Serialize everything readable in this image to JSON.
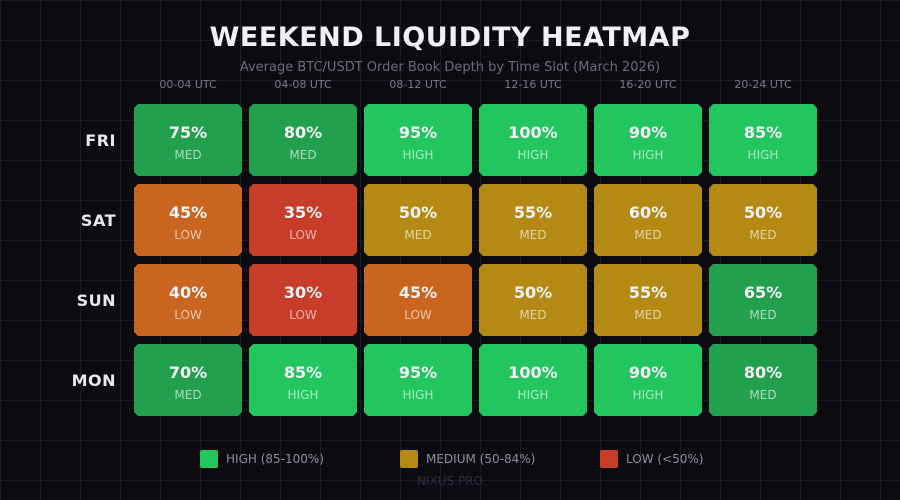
{
  "chart_data": {
    "type": "heatmap",
    "title": "WEEKEND LIQUIDITY HEATMAP",
    "subtitle": "Average BTC/USDT Order Book Depth by Time Slot (March 2026)",
    "xlabel": "",
    "ylabel": "",
    "columns": [
      "00-04 UTC",
      "04-08 UTC",
      "08-12 UTC",
      "12-16 UTC",
      "16-20 UTC",
      "20-24 UTC"
    ],
    "rows": [
      "FRI",
      "SAT",
      "SUN",
      "MON"
    ],
    "values": [
      [
        75,
        80,
        95,
        100,
        90,
        85
      ],
      [
        45,
        35,
        50,
        55,
        60,
        50
      ],
      [
        40,
        30,
        45,
        50,
        55,
        65
      ],
      [
        70,
        85,
        95,
        100,
        90,
        80
      ]
    ],
    "levels": [
      [
        "MED",
        "MED",
        "HIGH",
        "HIGH",
        "HIGH",
        "HIGH"
      ],
      [
        "LOW",
        "LOW",
        "MED",
        "MED",
        "MED",
        "MED"
      ],
      [
        "LOW",
        "LOW",
        "LOW",
        "MED",
        "MED",
        "MED"
      ],
      [
        "MED",
        "HIGH",
        "HIGH",
        "HIGH",
        "HIGH",
        "MED"
      ]
    ],
    "legend": [
      {
        "label": "HIGH (85-100%)",
        "color": "#22c55e"
      },
      {
        "label": "MEDIUM (50-84%)",
        "color": "#b58a14"
      },
      {
        "label": "LOW (<50%)",
        "color": "#c83c2a"
      }
    ],
    "legend_position": "bottom",
    "grid": true
  },
  "header": {
    "title": "WEEKEND LIQUIDITY HEATMAP",
    "subtitle": "Average BTC/USDT Order Book Depth by Time Slot (March 2026)"
  },
  "columns": [
    {
      "label": "00-04 UTC"
    },
    {
      "label": "04-08 UTC"
    },
    {
      "label": "08-12 UTC"
    },
    {
      "label": "12-16 UTC"
    },
    {
      "label": "16-20 UTC"
    },
    {
      "label": "20-24 UTC"
    }
  ],
  "rows": [
    {
      "label": "FRI",
      "cells": [
        {
          "pct": "75%",
          "level": "MED",
          "color": "#23a04e"
        },
        {
          "pct": "80%",
          "level": "MED",
          "color": "#23a04e"
        },
        {
          "pct": "95%",
          "level": "HIGH",
          "color": "#22c55e"
        },
        {
          "pct": "100%",
          "level": "HIGH",
          "color": "#22c55e"
        },
        {
          "pct": "90%",
          "level": "HIGH",
          "color": "#22c55e"
        },
        {
          "pct": "85%",
          "level": "HIGH",
          "color": "#22c55e"
        }
      ]
    },
    {
      "label": "SAT",
      "cells": [
        {
          "pct": "45%",
          "level": "LOW",
          "color": "#c9651f"
        },
        {
          "pct": "35%",
          "level": "LOW",
          "color": "#c83c2a"
        },
        {
          "pct": "50%",
          "level": "MED",
          "color": "#b58a14"
        },
        {
          "pct": "55%",
          "level": "MED",
          "color": "#b58a14"
        },
        {
          "pct": "60%",
          "level": "MED",
          "color": "#b58a14"
        },
        {
          "pct": "50%",
          "level": "MED",
          "color": "#b58a14"
        }
      ]
    },
    {
      "label": "SUN",
      "cells": [
        {
          "pct": "40%",
          "level": "LOW",
          "color": "#c9651f"
        },
        {
          "pct": "30%",
          "level": "LOW",
          "color": "#c83c2a"
        },
        {
          "pct": "45%",
          "level": "LOW",
          "color": "#c9651f"
        },
        {
          "pct": "50%",
          "level": "MED",
          "color": "#b58a14"
        },
        {
          "pct": "55%",
          "level": "MED",
          "color": "#b58a14"
        },
        {
          "pct": "65%",
          "level": "MED",
          "color": "#23a04e"
        }
      ]
    },
    {
      "label": "MON",
      "cells": [
        {
          "pct": "70%",
          "level": "MED",
          "color": "#23a04e"
        },
        {
          "pct": "85%",
          "level": "HIGH",
          "color": "#22c55e"
        },
        {
          "pct": "95%",
          "level": "HIGH",
          "color": "#22c55e"
        },
        {
          "pct": "100%",
          "level": "HIGH",
          "color": "#22c55e"
        },
        {
          "pct": "90%",
          "level": "HIGH",
          "color": "#22c55e"
        },
        {
          "pct": "80%",
          "level": "MED",
          "color": "#23a04e"
        }
      ]
    }
  ],
  "legend": [
    {
      "label": "HIGH (85-100%)",
      "color": "#22c55e"
    },
    {
      "label": "MEDIUM (50-84%)",
      "color": "#b58a14"
    },
    {
      "label": "LOW (<50%)",
      "color": "#c83c2a"
    }
  ],
  "watermark": "NIXUS.PRO"
}
